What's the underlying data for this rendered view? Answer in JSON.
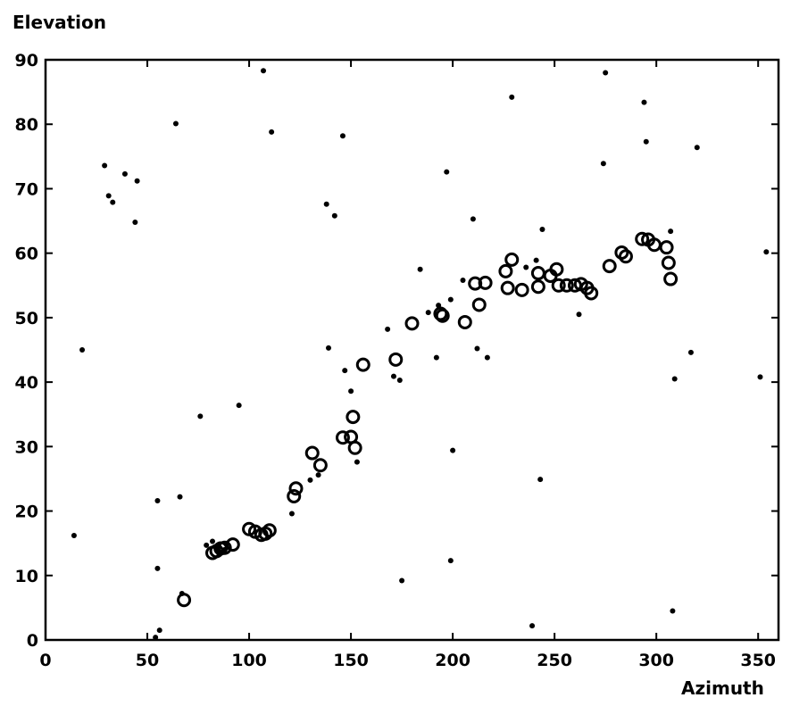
{
  "chart_data": {
    "type": "scatter",
    "title": "",
    "xlabel": "Azimuth",
    "ylabel": "Elevation",
    "xlim": [
      0,
      360
    ],
    "ylim": [
      0,
      90
    ],
    "x_ticks": [
      0,
      50,
      100,
      150,
      200,
      250,
      300,
      350
    ],
    "y_ticks": [
      0,
      10,
      20,
      30,
      40,
      50,
      60,
      70,
      80,
      90
    ],
    "grid": false,
    "legend": "none",
    "colors": {
      "marker": "#000000",
      "axes": "#000000",
      "background": "#ffffff"
    },
    "series": [
      {
        "marker": "hollow-circle",
        "points": [
          [
            68,
            6.2
          ],
          [
            82,
            13.5
          ],
          [
            84,
            13.8
          ],
          [
            86,
            14.2
          ],
          [
            88,
            14.3
          ],
          [
            92,
            14.8
          ],
          [
            100,
            17.2
          ],
          [
            103,
            16.8
          ],
          [
            106,
            16.3
          ],
          [
            108,
            16.5
          ],
          [
            110,
            17.0
          ],
          [
            122,
            22.3
          ],
          [
            123,
            23.5
          ],
          [
            131,
            29.0
          ],
          [
            135,
            27.1
          ],
          [
            146,
            31.4
          ],
          [
            150,
            31.5
          ],
          [
            151,
            34.6
          ],
          [
            152,
            29.8
          ],
          [
            156,
            42.7
          ],
          [
            172,
            43.5
          ],
          [
            180,
            49.1
          ],
          [
            194,
            50.6
          ],
          [
            195,
            50.3
          ],
          [
            206,
            49.3
          ],
          [
            211,
            55.3
          ],
          [
            213,
            52.0
          ],
          [
            216,
            55.4
          ],
          [
            226,
            57.2
          ],
          [
            227,
            54.6
          ],
          [
            229,
            59.0
          ],
          [
            234,
            54.3
          ],
          [
            242,
            54.8
          ],
          [
            242,
            56.9
          ],
          [
            248,
            56.5
          ],
          [
            251,
            57.5
          ],
          [
            252,
            55.0
          ],
          [
            256,
            55.0
          ],
          [
            260,
            55.0
          ],
          [
            263,
            55.2
          ],
          [
            266,
            54.6
          ],
          [
            268,
            53.8
          ],
          [
            277,
            58.0
          ],
          [
            283,
            60.1
          ],
          [
            285,
            59.5
          ],
          [
            293,
            62.2
          ],
          [
            296,
            62.1
          ],
          [
            299,
            61.3
          ],
          [
            305,
            60.9
          ],
          [
            306,
            58.5
          ],
          [
            307,
            56.0
          ]
        ]
      },
      {
        "marker": "dot",
        "points": [
          [
            14,
            16.2
          ],
          [
            18,
            45.0
          ],
          [
            29,
            73.6
          ],
          [
            31,
            68.9
          ],
          [
            33,
            67.9
          ],
          [
            39,
            72.3
          ],
          [
            44,
            64.8
          ],
          [
            45,
            71.2
          ],
          [
            54,
            0.4
          ],
          [
            55,
            11.1
          ],
          [
            55,
            21.6
          ],
          [
            56,
            1.5
          ],
          [
            64,
            80.1
          ],
          [
            66,
            22.2
          ],
          [
            67,
            7.2
          ],
          [
            76,
            34.7
          ],
          [
            79,
            14.7
          ],
          [
            82,
            15.3
          ],
          [
            85,
            14.5
          ],
          [
            88,
            14.0
          ],
          [
            95,
            36.4
          ],
          [
            107,
            88.3
          ],
          [
            111,
            78.8
          ],
          [
            121,
            19.6
          ],
          [
            130,
            24.8
          ],
          [
            134,
            25.6
          ],
          [
            138,
            67.6
          ],
          [
            139,
            45.3
          ],
          [
            142,
            65.8
          ],
          [
            146,
            78.2
          ],
          [
            147,
            41.8
          ],
          [
            150,
            38.6
          ],
          [
            153,
            27.6
          ],
          [
            168,
            48.2
          ],
          [
            171,
            40.9
          ],
          [
            174,
            40.3
          ],
          [
            175,
            9.2
          ],
          [
            184,
            57.5
          ],
          [
            188,
            50.8
          ],
          [
            192,
            43.8
          ],
          [
            193,
            51.9
          ],
          [
            197,
            72.6
          ],
          [
            199,
            52.8
          ],
          [
            199,
            12.3
          ],
          [
            200,
            29.4
          ],
          [
            205,
            55.8
          ],
          [
            210,
            65.3
          ],
          [
            212,
            45.2
          ],
          [
            217,
            43.8
          ],
          [
            229,
            84.2
          ],
          [
            236,
            57.8
          ],
          [
            239,
            2.2
          ],
          [
            241,
            58.9
          ],
          [
            243,
            24.9
          ],
          [
            244,
            63.7
          ],
          [
            262,
            50.5
          ],
          [
            274,
            73.9
          ],
          [
            275,
            88.0
          ],
          [
            294,
            83.4
          ],
          [
            295,
            77.3
          ],
          [
            307,
            63.4
          ],
          [
            308,
            4.5
          ],
          [
            309,
            40.5
          ],
          [
            317,
            44.6
          ],
          [
            320,
            76.4
          ],
          [
            351,
            40.8
          ],
          [
            354,
            60.2
          ]
        ]
      }
    ]
  }
}
